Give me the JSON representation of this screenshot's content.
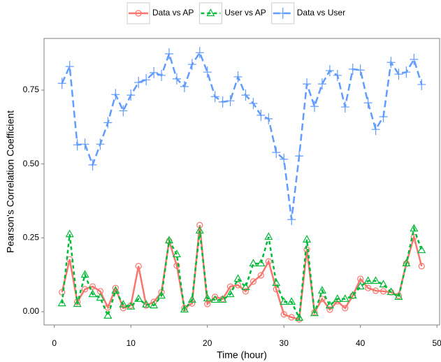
{
  "chart_data": {
    "type": "line",
    "x_label": "Time (hour)",
    "y_label": "Pearson's Correlation Coefficient",
    "x": [
      1,
      2,
      3,
      4,
      5,
      6,
      7,
      8,
      9,
      10,
      11,
      12,
      13,
      14,
      15,
      16,
      17,
      18,
      19,
      20,
      21,
      22,
      23,
      24,
      25,
      26,
      27,
      28,
      29,
      30,
      31,
      32,
      33,
      34,
      35,
      36,
      37,
      38,
      39,
      40,
      41,
      42,
      43,
      44,
      45,
      46,
      47,
      48
    ],
    "series": [
      {
        "name": "Data vs AP",
        "color": "#f8766d",
        "linetype": "solid",
        "shape": "circle",
        "values": [
          0.066,
          0.177,
          0.033,
          0.076,
          0.085,
          0.069,
          0.014,
          0.08,
          0.012,
          0.021,
          0.154,
          0.021,
          0.033,
          0.066,
          0.239,
          0.156,
          0.012,
          0.028,
          0.293,
          0.026,
          0.05,
          0.043,
          0.085,
          0.09,
          0.069,
          0.102,
          0.123,
          0.17,
          0.076,
          -0.009,
          -0.019,
          -0.026,
          0.21,
          -0.002,
          0.043,
          0.007,
          0.035,
          0.012,
          0.054,
          0.111,
          0.08,
          0.071,
          0.069,
          0.066,
          0.054,
          0.163,
          0.253,
          0.154
        ]
      },
      {
        "name": "User vs AP",
        "color": "#00ba38",
        "linetype": "dashed",
        "shape": "triangle",
        "values": [
          0.028,
          0.262,
          0.026,
          0.125,
          0.059,
          0.047,
          -0.014,
          0.071,
          0.024,
          0.017,
          0.043,
          0.024,
          0.021,
          0.054,
          0.241,
          0.194,
          0.007,
          0.04,
          0.274,
          0.045,
          0.04,
          0.04,
          0.059,
          0.111,
          0.083,
          0.163,
          0.163,
          0.253,
          0.097,
          0.033,
          0.033,
          -0.021,
          0.244,
          -0.005,
          0.071,
          0.021,
          0.043,
          0.043,
          0.054,
          0.085,
          0.104,
          0.104,
          0.092,
          0.066,
          0.05,
          0.163,
          0.281,
          0.208
        ]
      },
      {
        "name": "Data vs User",
        "color": "#619cff",
        "linetype": "longdash",
        "shape": "plus",
        "values": [
          0.773,
          0.83,
          0.565,
          0.567,
          0.497,
          0.567,
          0.64,
          0.735,
          0.68,
          0.733,
          0.776,
          0.785,
          0.809,
          0.8,
          0.873,
          0.788,
          0.762,
          0.837,
          0.877,
          0.811,
          0.728,
          0.71,
          0.714,
          0.795,
          0.733,
          0.705,
          0.665,
          0.653,
          0.539,
          0.516,
          0.312,
          0.527,
          0.771,
          0.695,
          0.771,
          0.816,
          0.8,
          0.693,
          0.821,
          0.818,
          0.707,
          0.617,
          0.66,
          0.844,
          0.804,
          0.811,
          0.854,
          0.769
        ]
      }
    ],
    "xlim": [
      -1.35,
      50.35
    ],
    "xticks": [
      0,
      10,
      20,
      30,
      40,
      50
    ],
    "ylim": [
      -0.045,
      0.925
    ],
    "yticks": [
      {
        "value": 0,
        "label": "0.00"
      },
      {
        "value": 0.25,
        "label": "0.25"
      },
      {
        "value": 0.5,
        "label": "0.50"
      },
      {
        "value": 0.75,
        "label": "0.75"
      }
    ],
    "grid": false,
    "legend_position": "top"
  }
}
